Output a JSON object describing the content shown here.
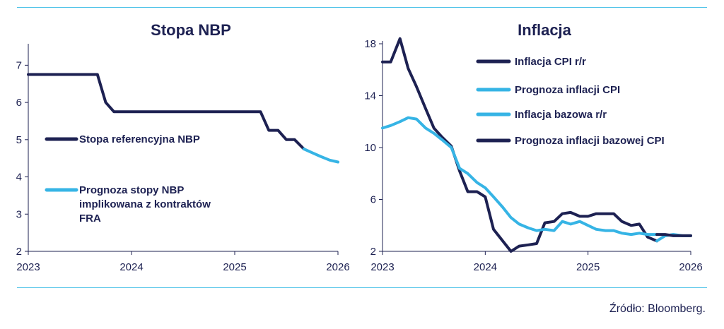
{
  "source": "Źródło: Bloomberg.",
  "colors": {
    "dark": "#1d2152",
    "light": "#36b4e5",
    "rule": "#4fc3e8"
  },
  "chart_data": [
    {
      "type": "line",
      "title": "Stopa NBP",
      "x_ticks": [
        "2023",
        "2024",
        "2025",
        "2026"
      ],
      "y_ticks": [
        2,
        3,
        4,
        5,
        6,
        7
      ],
      "xlim": [
        2023.0,
        2026.0
      ],
      "ylim": [
        2,
        7.5
      ],
      "grid": false,
      "legend_placement": "inside-left",
      "series": [
        {
          "name": "Stopa referencyjna NBP",
          "color": "#1d2152",
          "points": [
            [
              2023.0,
              6.75
            ],
            [
              2023.1,
              6.75
            ],
            [
              2023.2,
              6.75
            ],
            [
              2023.3,
              6.75
            ],
            [
              2023.4,
              6.75
            ],
            [
              2023.5,
              6.75
            ],
            [
              2023.6,
              6.75
            ],
            [
              2023.67,
              6.75
            ],
            [
              2023.75,
              6.0
            ],
            [
              2023.83,
              5.75
            ],
            [
              2024.0,
              5.75
            ],
            [
              2024.25,
              5.75
            ],
            [
              2024.5,
              5.75
            ],
            [
              2024.75,
              5.75
            ],
            [
              2025.0,
              5.75
            ],
            [
              2025.25,
              5.75
            ],
            [
              2025.33,
              5.25
            ],
            [
              2025.42,
              5.25
            ],
            [
              2025.5,
              5.0
            ],
            [
              2025.58,
              5.0
            ],
            [
              2025.67,
              4.75
            ]
          ]
        },
        {
          "name": "Prognoza stopy NBP implikowana z kontraktów FRA",
          "color": "#36b4e5",
          "points": [
            [
              2025.67,
              4.75
            ],
            [
              2025.75,
              4.65
            ],
            [
              2025.83,
              4.55
            ],
            [
              2025.92,
              4.45
            ],
            [
              2026.0,
              4.4
            ]
          ]
        }
      ]
    },
    {
      "type": "line",
      "title": "Inflacja",
      "x_ticks": [
        "2023",
        "2024",
        "2025",
        "2026"
      ],
      "y_ticks": [
        2,
        6,
        10,
        14,
        18
      ],
      "xlim": [
        2023.0,
        2026.0
      ],
      "ylim": [
        2,
        18
      ],
      "grid": false,
      "legend_placement": "top-right",
      "series": [
        {
          "name": "Inflacja CPI r/r",
          "color": "#1d2152",
          "points": [
            [
              2023.0,
              16.6
            ],
            [
              2023.08,
              16.6
            ],
            [
              2023.17,
              18.4
            ],
            [
              2023.25,
              16.1
            ],
            [
              2023.33,
              14.7
            ],
            [
              2023.42,
              13.0
            ],
            [
              2023.5,
              11.5
            ],
            [
              2023.58,
              10.8
            ],
            [
              2023.67,
              10.1
            ],
            [
              2023.75,
              8.2
            ],
            [
              2023.83,
              6.6
            ],
            [
              2023.92,
              6.6
            ],
            [
              2024.0,
              6.2
            ],
            [
              2024.08,
              3.7
            ],
            [
              2024.17,
              2.8
            ],
            [
              2024.25,
              2.0
            ],
            [
              2024.33,
              2.4
            ],
            [
              2024.42,
              2.5
            ],
            [
              2024.5,
              2.6
            ],
            [
              2024.58,
              4.2
            ],
            [
              2024.67,
              4.3
            ],
            [
              2024.75,
              4.9
            ],
            [
              2024.83,
              5.0
            ],
            [
              2024.92,
              4.7
            ],
            [
              2025.0,
              4.7
            ],
            [
              2025.08,
              4.9
            ],
            [
              2025.17,
              4.9
            ],
            [
              2025.25,
              4.9
            ],
            [
              2025.33,
              4.3
            ],
            [
              2025.42,
              4.0
            ],
            [
              2025.5,
              4.1
            ],
            [
              2025.58,
              3.1
            ],
            [
              2025.67,
              2.8
            ]
          ]
        },
        {
          "name": "Prognoza inflacji CPI",
          "color": "#36b4e5",
          "points": [
            [
              2025.67,
              2.8
            ],
            [
              2025.75,
              3.2
            ],
            [
              2025.83,
              3.3
            ],
            [
              2025.92,
              3.2
            ],
            [
              2026.0,
              3.2
            ]
          ]
        },
        {
          "name": "Inflacja bazowa r/r",
          "color": "#36b4e5",
          "points": [
            [
              2023.0,
              11.5
            ],
            [
              2023.08,
              11.7
            ],
            [
              2023.17,
              12.0
            ],
            [
              2023.25,
              12.3
            ],
            [
              2023.33,
              12.2
            ],
            [
              2023.42,
              11.5
            ],
            [
              2023.5,
              11.1
            ],
            [
              2023.58,
              10.6
            ],
            [
              2023.67,
              10.0
            ],
            [
              2023.75,
              8.4
            ],
            [
              2023.83,
              8.0
            ],
            [
              2023.92,
              7.3
            ],
            [
              2024.0,
              6.9
            ],
            [
              2024.08,
              6.2
            ],
            [
              2024.17,
              5.4
            ],
            [
              2024.25,
              4.6
            ],
            [
              2024.33,
              4.1
            ],
            [
              2024.42,
              3.8
            ],
            [
              2024.5,
              3.6
            ],
            [
              2024.58,
              3.7
            ],
            [
              2024.67,
              3.6
            ],
            [
              2024.75,
              4.3
            ],
            [
              2024.83,
              4.1
            ],
            [
              2024.92,
              4.3
            ],
            [
              2025.0,
              4.0
            ],
            [
              2025.08,
              3.7
            ],
            [
              2025.17,
              3.6
            ],
            [
              2025.25,
              3.6
            ],
            [
              2025.33,
              3.4
            ],
            [
              2025.42,
              3.3
            ],
            [
              2025.5,
              3.4
            ],
            [
              2025.58,
              3.3
            ],
            [
              2025.67,
              3.3
            ]
          ]
        },
        {
          "name": "Prognoza inflacji bazowej CPI",
          "color": "#1d2152",
          "points": [
            [
              2025.67,
              3.3
            ],
            [
              2025.75,
              3.3
            ],
            [
              2025.83,
              3.2
            ],
            [
              2025.92,
              3.2
            ],
            [
              2026.0,
              3.2
            ]
          ]
        }
      ]
    }
  ]
}
